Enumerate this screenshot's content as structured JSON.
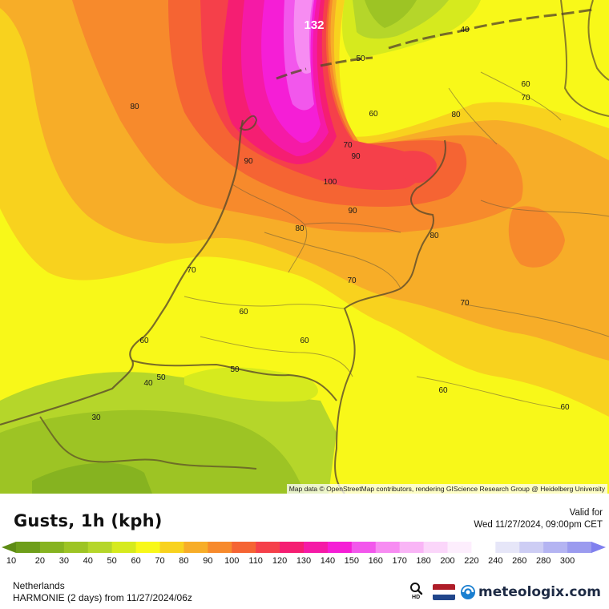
{
  "map": {
    "max_value_label": "132",
    "attribution": "Map data © OpenStreetMap contributors, rendering GIScience Research Group @ Heidelberg University",
    "contour_labels": [
      "132",
      "40",
      "50",
      "60",
      "70",
      "80",
      "90",
      "100",
      "80",
      "60",
      "70",
      "90",
      "70",
      "80",
      "90",
      "80",
      "70",
      "70",
      "60",
      "60",
      "60",
      "60",
      "50",
      "50",
      "40",
      "30",
      "60",
      "60"
    ]
  },
  "legend": {
    "title": "Gusts, 1h (kph)",
    "valid_label": "Valid for",
    "valid_time": "Wed 11/27/2024, 09:00pm CET",
    "region": "Netherlands",
    "model": "HARMONIE (2 days) from  11/27/2024/06z",
    "hd_label": "HD",
    "brand": "meteologix.com",
    "scale": [
      {
        "label": "10",
        "color": "#6e9e1a"
      },
      {
        "label": "20",
        "color": "#86b320"
      },
      {
        "label": "30",
        "color": "#9dc424"
      },
      {
        "label": "40",
        "color": "#b5d62a"
      },
      {
        "label": "50",
        "color": "#d6ea1e"
      },
      {
        "label": "60",
        "color": "#f8f819"
      },
      {
        "label": "70",
        "color": "#f8d21e"
      },
      {
        "label": "80",
        "color": "#f7ad28"
      },
      {
        "label": "90",
        "color": "#f78a2c"
      },
      {
        "label": "100",
        "color": "#f56433"
      },
      {
        "label": "110",
        "color": "#f5404a"
      },
      {
        "label": "120",
        "color": "#f51e72"
      },
      {
        "label": "130",
        "color": "#f51aa6"
      },
      {
        "label": "140",
        "color": "#f51ed6"
      },
      {
        "label": "150",
        "color": "#f257ec"
      },
      {
        "label": "160",
        "color": "#f78cf2"
      },
      {
        "label": "170",
        "color": "#f9b5f6"
      },
      {
        "label": "180",
        "color": "#fbd6fa"
      },
      {
        "label": "200",
        "color": "#fdeefd"
      },
      {
        "label": "220",
        "color": "#ffffff"
      },
      {
        "label": "240",
        "color": "#e6e6f8"
      },
      {
        "label": "260",
        "color": "#cdcdf4"
      },
      {
        "label": "280",
        "color": "#b4b4f2"
      },
      {
        "label": "300",
        "color": "#9b9bef"
      }
    ],
    "scale_start_color": "#5e8c14",
    "scale_end_color": "#8080ee"
  },
  "flag_colors": [
    "#ae1c28",
    "#ffffff",
    "#21468b"
  ],
  "brand_color": "#1d2a44",
  "accent_colors": {
    "brand_icon": "#1a7fd0"
  }
}
